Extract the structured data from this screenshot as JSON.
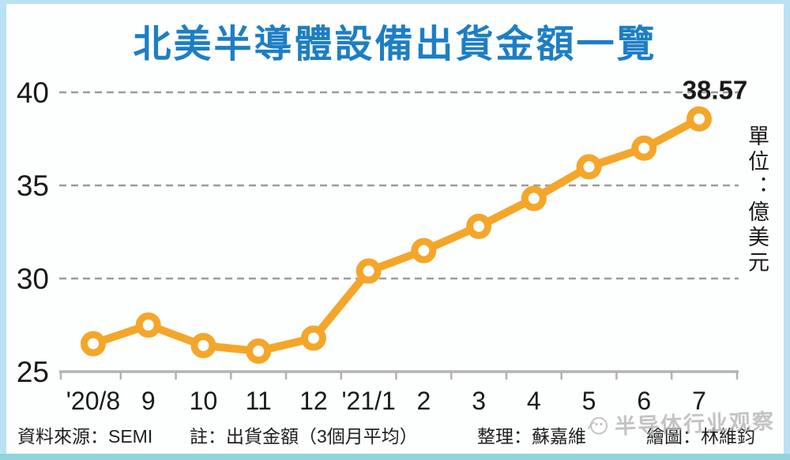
{
  "header": {
    "title": "北美半導體設備出貨金額一覽"
  },
  "unit_label": "單位：億美元",
  "footer": {
    "source": "資料來源：SEMI",
    "note": "註：出貨金額（3個月平均）",
    "compiled": "整理：蘇嘉維",
    "drawn": "繪圖：林維鈞"
  },
  "watermark": {
    "logo": "cartoon-chip-face-icon",
    "text": "半导体行业观察"
  },
  "colors": {
    "title_blue": "#1d7ec4",
    "line_orange": "#F4A62A",
    "grid_gray": "#9b9b9b",
    "axis_gray": "#b3b3b3",
    "text_black": "#1a1a1a",
    "border_blue": "#b9e2f4",
    "border_bottom_teal": "#90d4de",
    "watermark_gray": "#b5b5b5"
  },
  "chart_data": {
    "type": "line",
    "title": "北美半導體設備出貨金額一覽",
    "ylabel": "單位：億美元",
    "categories": [
      "'20/8",
      "9",
      "10",
      "11",
      "12",
      "'21/1",
      "2",
      "3",
      "4",
      "5",
      "6",
      "7"
    ],
    "values": [
      26.5,
      27.5,
      26.4,
      26.1,
      26.8,
      30.4,
      31.5,
      32.8,
      34.3,
      36.0,
      37.0,
      38.57
    ],
    "last_point_label": "38.57",
    "ylim": [
      25,
      40
    ],
    "yticks": [
      25,
      30,
      35,
      40
    ],
    "grid": "horizontal-dashed",
    "legend": "none",
    "marker": "open-circle"
  }
}
